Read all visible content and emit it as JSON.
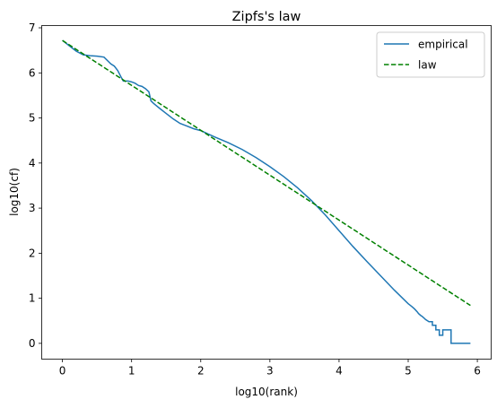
{
  "chart_data": {
    "type": "line",
    "title": "Zipfs's law",
    "xlabel": "log10(rank)",
    "ylabel": "log10(cf)",
    "xlim": [
      -0.3,
      6.2
    ],
    "ylim": [
      -0.35,
      7.05
    ],
    "xticks": [
      0,
      1,
      2,
      3,
      4,
      5,
      6
    ],
    "yticks": [
      0,
      1,
      2,
      3,
      4,
      5,
      6,
      7
    ],
    "xtick_labels": [
      "0",
      "1",
      "2",
      "3",
      "4",
      "5",
      "6"
    ],
    "ytick_labels": [
      "0",
      "1",
      "2",
      "3",
      "4",
      "5",
      "6",
      "7"
    ],
    "grid": false,
    "legend_position": "top-right",
    "series": [
      {
        "name": "empirical",
        "color": "#1f77b4",
        "style": "solid",
        "x": [
          0,
          0.1,
          0.2,
          0.3,
          0.4,
          0.5,
          0.6,
          0.7,
          0.75,
          0.8,
          0.85,
          0.88,
          0.95,
          1.0,
          1.05,
          1.1,
          1.15,
          1.2,
          1.25,
          1.28,
          1.32,
          1.4,
          1.5,
          1.6,
          1.7,
          1.8,
          1.9,
          2.0,
          2.1,
          2.2,
          2.4,
          2.6,
          2.8,
          3.0,
          3.2,
          3.4,
          3.6,
          3.8,
          4.0,
          4.2,
          4.4,
          4.6,
          4.8,
          5.0,
          5.05,
          5.08,
          5.1,
          5.13,
          5.15,
          5.18,
          5.2,
          5.23,
          5.25,
          5.28,
          5.3,
          5.35,
          5.35,
          5.4,
          5.4,
          5.45,
          5.45,
          5.5,
          5.5,
          5.6,
          5.6,
          5.62,
          5.62,
          5.9
        ],
        "y": [
          6.72,
          6.6,
          6.48,
          6.4,
          6.38,
          6.37,
          6.35,
          6.2,
          6.15,
          6.05,
          5.9,
          5.82,
          5.82,
          5.8,
          5.77,
          5.72,
          5.7,
          5.65,
          5.58,
          5.38,
          5.32,
          5.22,
          5.1,
          4.98,
          4.88,
          4.82,
          4.76,
          4.72,
          4.65,
          4.58,
          4.45,
          4.3,
          4.12,
          3.92,
          3.7,
          3.45,
          3.17,
          2.85,
          2.5,
          2.15,
          1.82,
          1.5,
          1.18,
          0.88,
          0.82,
          0.78,
          0.75,
          0.7,
          0.66,
          0.62,
          0.6,
          0.56,
          0.53,
          0.5,
          0.48,
          0.48,
          0.4,
          0.4,
          0.3,
          0.3,
          0.18,
          0.18,
          0.3,
          0.3,
          0.3,
          0.3,
          0.0,
          0.0
        ]
      },
      {
        "name": "law",
        "color": "#008000",
        "style": "dashed",
        "x": [
          0,
          5.9
        ],
        "y": [
          6.72,
          0.84
        ]
      }
    ]
  }
}
